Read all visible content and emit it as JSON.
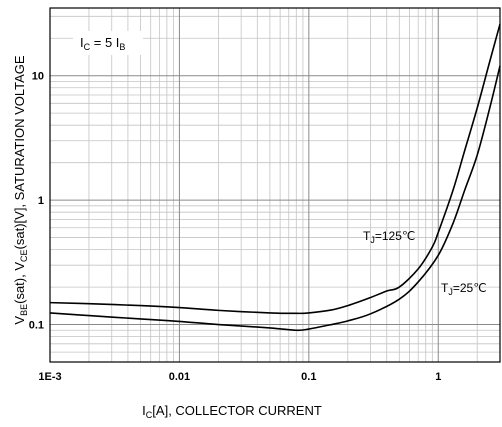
{
  "chart_data": {
    "type": "line",
    "xscale": "log",
    "yscale": "log",
    "xlim": [
      0.001,
      3
    ],
    "ylim": [
      0.05,
      35
    ],
    "grid": true,
    "xlabel": {
      "pre": "I",
      "sub": "C",
      "post": "[A], COLLECTOR CURRENT"
    },
    "ylabel": {
      "p1": "V",
      "s1": "BE",
      "p2": "(sat),  V",
      "s2": "CE",
      "p3": "(sat)[V], SATURATION VOLTAGE"
    },
    "xticks": [
      {
        "value": 0.001,
        "label": "1E-3"
      },
      {
        "value": 0.01,
        "label": "0.01"
      },
      {
        "value": 0.1,
        "label": "0.1"
      },
      {
        "value": 1,
        "label": "1"
      }
    ],
    "yticks": [
      {
        "value": 0.1,
        "label": "0.1"
      },
      {
        "value": 1,
        "label": "1"
      },
      {
        "value": 10,
        "label": "10"
      }
    ],
    "condition": {
      "pre": "I",
      "sub1": "C",
      "mid": " = 5 I",
      "sub2": "B"
    },
    "series": [
      {
        "name": "VBE(sat)",
        "x": [
          0.001,
          0.002,
          0.005,
          0.01,
          0.02,
          0.05,
          0.08,
          0.1,
          0.15,
          0.2,
          0.3,
          0.4,
          0.5,
          0.7,
          0.9,
          1.0,
          1.3,
          1.6,
          2.0,
          2.5,
          3.0
        ],
        "y": [
          0.15,
          0.147,
          0.142,
          0.137,
          0.13,
          0.124,
          0.123,
          0.124,
          0.131,
          0.142,
          0.165,
          0.186,
          0.2,
          0.28,
          0.42,
          0.55,
          1.2,
          2.5,
          5.5,
          13,
          26
        ]
      },
      {
        "name": "VCE(sat)",
        "x": [
          0.001,
          0.002,
          0.005,
          0.01,
          0.02,
          0.05,
          0.08,
          0.1,
          0.15,
          0.2,
          0.3,
          0.5,
          0.7,
          1.0,
          1.3,
          1.6,
          2.0,
          2.5,
          3.0
        ],
        "y": [
          0.124,
          0.118,
          0.111,
          0.106,
          0.1,
          0.094,
          0.09,
          0.092,
          0.1,
          0.107,
          0.122,
          0.16,
          0.22,
          0.36,
          0.65,
          1.2,
          2.3,
          5.5,
          12
        ]
      }
    ],
    "annotations": [
      {
        "pre": "T",
        "sub": "J",
        "post": "=125℃",
        "x": 0.2,
        "y": 0.95
      },
      {
        "pre": "T",
        "sub": "J",
        "post": "=25℃",
        "x": 1.0,
        "y": 0.22
      }
    ]
  }
}
